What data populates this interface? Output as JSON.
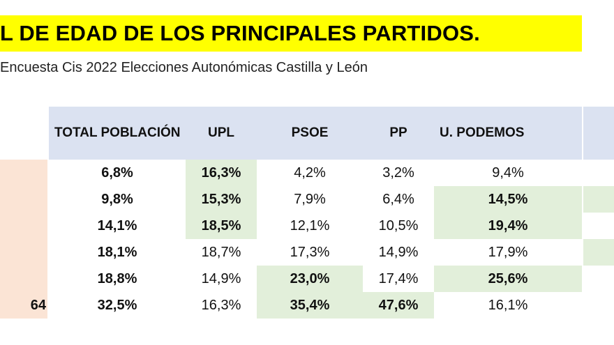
{
  "title": "L DE EDAD DE LOS PRINCIPALES PARTIDOS.",
  "subtitle": "Encuesta Cis 2022 Elecciones Autonómicas Castilla y León",
  "headers": {
    "total": "TOTAL POBLACIÓN",
    "upl": "UPL",
    "psoe": "PSOE",
    "pp": "PP",
    "podemos": "U. PODEMOS"
  },
  "row_labels": [
    "",
    "",
    "",
    "",
    "",
    "64"
  ],
  "rows": [
    [
      "6,8%",
      "16,3%",
      "4,2%",
      "3,2%",
      "9,4%"
    ],
    [
      "9,8%",
      "15,3%",
      "7,9%",
      "6,4%",
      "14,5%"
    ],
    [
      "14,1%",
      "18,5%",
      "12,1%",
      "10,5%",
      "19,4%"
    ],
    [
      "18,1%",
      "18,7%",
      "17,3%",
      "14,9%",
      "17,9%"
    ],
    [
      "18,8%",
      "14,9%",
      "23,0%",
      "17,4%",
      "25,6%"
    ],
    [
      "32,5%",
      "16,3%",
      "35,4%",
      "47,6%",
      "16,1%"
    ]
  ],
  "colors": {
    "title_highlight": "#ffff00",
    "header_bg": "#dbe2f1",
    "highlight_green": "#e2efda",
    "row_label_bg": "#fbe4d5"
  }
}
